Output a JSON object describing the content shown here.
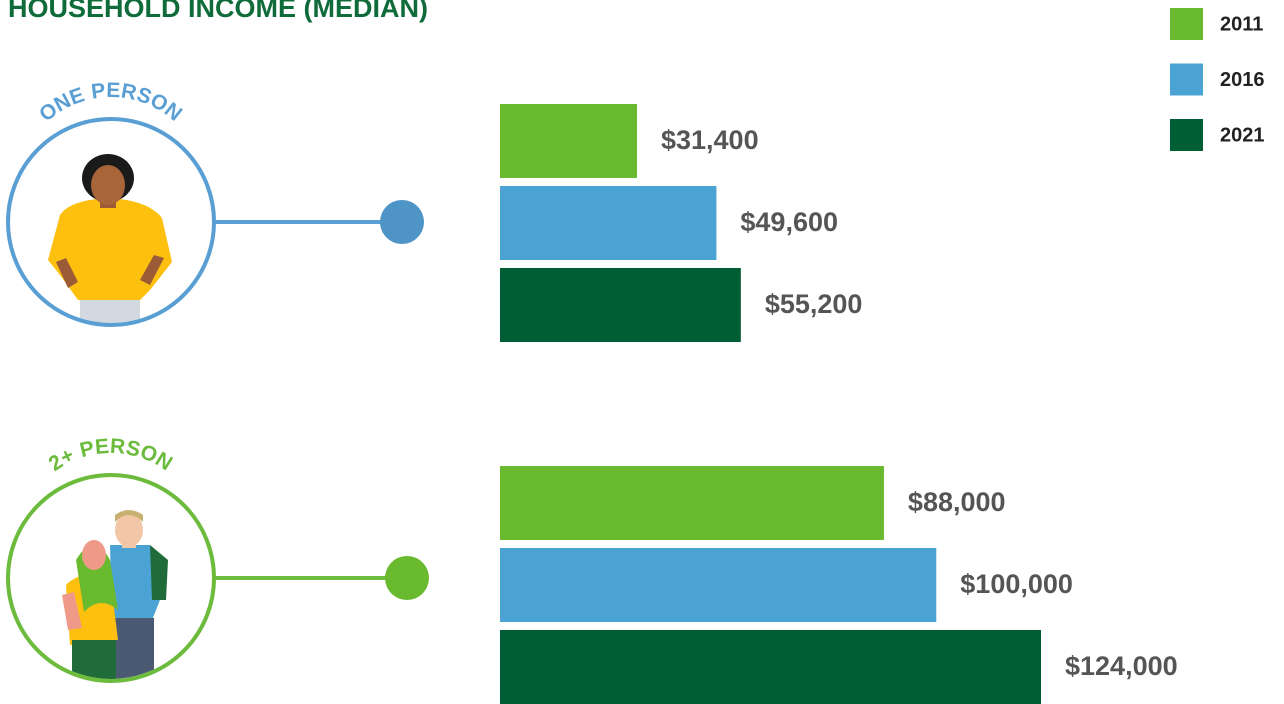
{
  "chart_data": {
    "type": "bar",
    "title": "HOUSEHOLD INCOME (MEDIAN)",
    "categories": [
      "ONE PERSON",
      "2+ PERSON"
    ],
    "category_colors": [
      "#5a9fd4",
      "#6cbb3c"
    ],
    "series": [
      {
        "name": "2011",
        "color": "#6aba2f",
        "values": [
          31400,
          88000
        ],
        "value_labels": [
          "$31,400",
          "$88,000"
        ]
      },
      {
        "name": "2016",
        "color": "#4ba3d3",
        "values": [
          49600,
          100000
        ],
        "value_labels": [
          "$49,600",
          "$100,000"
        ]
      },
      {
        "name": "2021",
        "color": "#005e35",
        "values": [
          55200,
          124000
        ],
        "value_labels": [
          "$55,200",
          "$124,000"
        ]
      }
    ]
  }
}
